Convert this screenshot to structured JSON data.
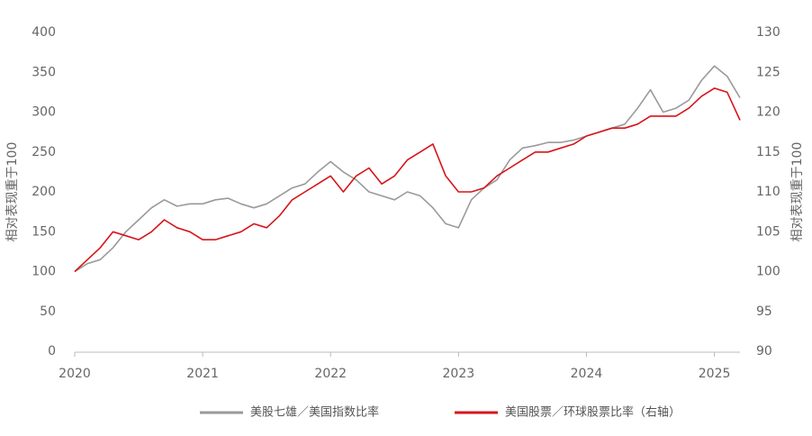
{
  "chart_data": {
    "type": "line",
    "y_label": "相对表现重于100",
    "y2_label": "相对表现重于100",
    "x": [
      2020.0,
      2020.1,
      2020.2,
      2020.3,
      2020.4,
      2020.5,
      2020.6,
      2020.7,
      2020.8,
      2020.9,
      2021.0,
      2021.1,
      2021.2,
      2021.3,
      2021.4,
      2021.5,
      2021.6,
      2021.7,
      2021.8,
      2021.9,
      2022.0,
      2022.1,
      2022.2,
      2022.3,
      2022.4,
      2022.5,
      2022.6,
      2022.7,
      2022.8,
      2022.9,
      2023.0,
      2023.1,
      2023.2,
      2023.3,
      2023.4,
      2023.5,
      2023.6,
      2023.7,
      2023.8,
      2023.9,
      2024.0,
      2024.1,
      2024.2,
      2024.3,
      2024.4,
      2024.5,
      2024.6,
      2024.7,
      2024.8,
      2024.9,
      2025.0,
      2025.1,
      2025.2
    ],
    "series": [
      {
        "name": "美股七雄／美国指数比率",
        "color": "#9a9a9a",
        "values": [
          100,
          110,
          115,
          130,
          150,
          165,
          180,
          190,
          182,
          185,
          185,
          190,
          192,
          185,
          180,
          185,
          195,
          205,
          210,
          225,
          238,
          225,
          215,
          200,
          195,
          190,
          200,
          195,
          180,
          160,
          155,
          190,
          205,
          215,
          240,
          255,
          258,
          262,
          262,
          265,
          270,
          275,
          280,
          285,
          305,
          328,
          300,
          305,
          315,
          340,
          358,
          345,
          318
        ]
      },
      {
        "name": "美国股票／环球股票比率（右轴）",
        "color": "#d7141a",
        "axis": "y2",
        "values": [
          100,
          101.5,
          103,
          105,
          104.5,
          104,
          105,
          106.5,
          105.5,
          105,
          104,
          104,
          104.5,
          105,
          106,
          105.5,
          107,
          109,
          110,
          111,
          112,
          110,
          112,
          113,
          111,
          112,
          114,
          115,
          116,
          112,
          110,
          110,
          110.5,
          112,
          113,
          114,
          115,
          115,
          115.5,
          116,
          117,
          117.5,
          118,
          118,
          118.5,
          119.5,
          119.5,
          119.5,
          120.5,
          122,
          123,
          122.5,
          119
        ]
      }
    ],
    "xlim": [
      2020,
      2025.2
    ],
    "xticks": [
      2020,
      2021,
      2022,
      2023,
      2024,
      2025
    ],
    "ylim": [
      0,
      400
    ],
    "yticks": [
      0,
      50,
      100,
      150,
      200,
      250,
      300,
      350,
      400
    ],
    "y2lim": [
      90,
      130
    ],
    "y2ticks": [
      90,
      95,
      100,
      105,
      110,
      115,
      120,
      125,
      130
    ],
    "legend": "bottom"
  }
}
